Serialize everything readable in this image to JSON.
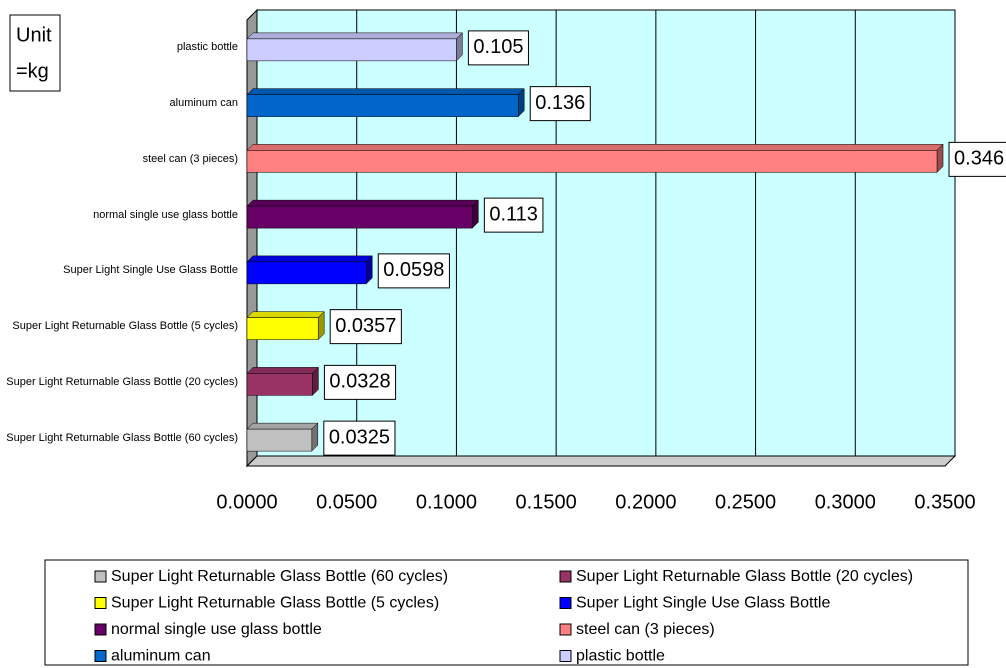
{
  "chart_data": {
    "type": "bar",
    "orientation": "horizontal",
    "annotation": [
      "Unit",
      "=kg"
    ],
    "categories": [
      "plastic bottle",
      "aluminum can",
      "steel can (3 pieces)",
      "normal single use glass bottle",
      "Super Light Single Use Glass Bottle",
      "Super Light Returnable Glass Bottle (5 cycles)",
      "Super Light Returnable Glass Bottle (20 cycles)",
      "Super Light Returnable Glass Bottle (60 cycles)"
    ],
    "series": [
      {
        "name": "Super Light Returnable Glass Bottle (60 cycles)",
        "color": "#c0c0c0",
        "values": [
          null,
          null,
          null,
          null,
          null,
          null,
          null,
          0.0325
        ]
      },
      {
        "name": "Super Light Returnable Glass Bottle (20 cycles)",
        "color": "#993366",
        "values": [
          null,
          null,
          null,
          null,
          null,
          null,
          0.0328,
          null
        ]
      },
      {
        "name": "Super Light Returnable Glass Bottle (5 cycles)",
        "color": "#ffff00",
        "values": [
          null,
          null,
          null,
          null,
          null,
          0.0357,
          null,
          null
        ]
      },
      {
        "name": "Super Light Single Use Glass Bottle",
        "color": "#0000ff",
        "values": [
          null,
          null,
          null,
          null,
          0.0598,
          null,
          null,
          null
        ]
      },
      {
        "name": "normal single use glass bottle",
        "color": "#660066",
        "values": [
          null,
          null,
          null,
          0.113,
          null,
          null,
          null,
          null
        ]
      },
      {
        "name": "steel can (3 pieces)",
        "color": "#ff8080",
        "values": [
          null,
          null,
          0.346,
          null,
          null,
          null,
          null,
          null
        ]
      },
      {
        "name": "aluminum can",
        "color": "#0066cc",
        "values": [
          null,
          0.136,
          null,
          null,
          null,
          null,
          null,
          null
        ]
      },
      {
        "name": "plastic bottle",
        "color": "#ccccff",
        "values": [
          0.105,
          null,
          null,
          null,
          null,
          null,
          null,
          null
        ]
      }
    ],
    "xlim": [
      0,
      0.35
    ],
    "xticks": [
      {
        "value": 0,
        "label": "0.0000"
      },
      {
        "value": 0.05,
        "label": "0.0500"
      },
      {
        "value": 0.1,
        "label": "0.1000"
      },
      {
        "value": 0.15,
        "label": "0.1500"
      },
      {
        "value": 0.2,
        "label": "0.2000"
      },
      {
        "value": 0.25,
        "label": "0.2500"
      },
      {
        "value": 0.3,
        "label": "0.3000"
      },
      {
        "value": 0.35,
        "label": "0.3500"
      }
    ],
    "grid": true,
    "plot_background": "#ccffff",
    "legend": "bottom"
  }
}
